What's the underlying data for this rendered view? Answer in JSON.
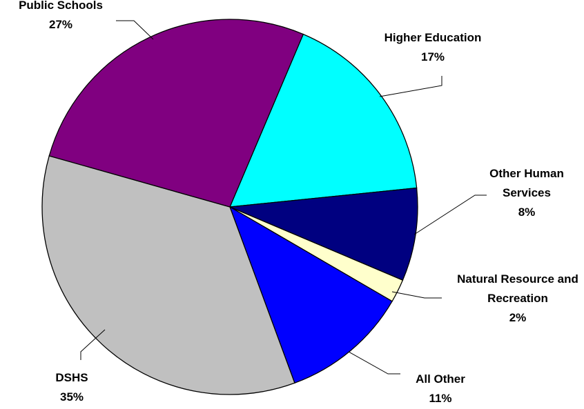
{
  "chart_data": {
    "type": "pie",
    "categories": [
      "Higher Education",
      "Other Human Services",
      "Natural Resource and Recreation",
      "All Other",
      "DSHS",
      "Public Schools"
    ],
    "values": [
      17,
      8,
      2,
      11,
      35,
      27
    ],
    "value_labels": [
      "17%",
      "8%",
      "2%",
      "11%",
      "35%",
      "27%"
    ],
    "colors": [
      "#00ffff",
      "#000080",
      "#ffffcc",
      "#0000ff",
      "#c0c0c0",
      "#800080"
    ]
  }
}
